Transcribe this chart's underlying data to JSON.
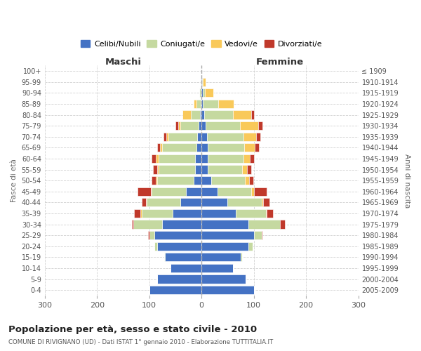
{
  "age_groups": [
    "0-4",
    "5-9",
    "10-14",
    "15-19",
    "20-24",
    "25-29",
    "30-34",
    "35-39",
    "40-44",
    "45-49",
    "50-54",
    "55-59",
    "60-64",
    "65-69",
    "70-74",
    "75-79",
    "80-84",
    "85-89",
    "90-94",
    "95-99",
    "100+"
  ],
  "birth_years": [
    "2005-2009",
    "2000-2004",
    "1995-1999",
    "1990-1994",
    "1985-1989",
    "1980-1984",
    "1975-1979",
    "1970-1974",
    "1965-1969",
    "1960-1964",
    "1955-1959",
    "1950-1954",
    "1945-1949",
    "1940-1944",
    "1935-1939",
    "1930-1934",
    "1925-1929",
    "1920-1924",
    "1915-1919",
    "1910-1914",
    "≤ 1909"
  ],
  "male_celibi": [
    100,
    85,
    60,
    70,
    85,
    90,
    75,
    55,
    40,
    30,
    15,
    12,
    12,
    10,
    8,
    5,
    3,
    2,
    2,
    1,
    0
  ],
  "male_coniugati": [
    0,
    0,
    0,
    2,
    5,
    10,
    55,
    60,
    65,
    65,
    70,
    70,
    70,
    65,
    55,
    35,
    18,
    8,
    2,
    0,
    0
  ],
  "male_vedovi": [
    0,
    0,
    0,
    0,
    0,
    0,
    0,
    2,
    2,
    2,
    2,
    3,
    5,
    5,
    5,
    5,
    15,
    5,
    0,
    0,
    0
  ],
  "male_divorziati": [
    0,
    0,
    0,
    0,
    0,
    2,
    3,
    12,
    8,
    25,
    8,
    8,
    8,
    5,
    5,
    5,
    0,
    0,
    0,
    0,
    0
  ],
  "female_celibi": [
    100,
    85,
    60,
    75,
    90,
    100,
    90,
    65,
    50,
    30,
    18,
    12,
    12,
    12,
    10,
    8,
    5,
    2,
    2,
    1,
    0
  ],
  "female_coniugati": [
    0,
    0,
    0,
    2,
    8,
    15,
    60,
    58,
    65,
    65,
    65,
    65,
    68,
    70,
    70,
    65,
    55,
    30,
    5,
    2,
    0
  ],
  "female_vedovi": [
    0,
    0,
    0,
    0,
    0,
    0,
    0,
    2,
    3,
    5,
    8,
    10,
    12,
    20,
    25,
    35,
    35,
    30,
    15,
    5,
    0
  ],
  "female_divorziati": [
    0,
    0,
    0,
    0,
    0,
    2,
    10,
    12,
    12,
    25,
    8,
    8,
    8,
    8,
    8,
    8,
    5,
    0,
    0,
    0,
    0
  ],
  "colors": {
    "celibi": "#4472c4",
    "coniugati": "#c5d9a0",
    "vedovi": "#f9c95a",
    "divorziati": "#c0392b"
  },
  "title": "Popolazione per età, sesso e stato civile - 2010",
  "subtitle": "COMUNE DI RIVIGNANO (UD) - Dati ISTAT 1° gennaio 2010 - Elaborazione TUTTITALIA.IT",
  "xlabel_left": "Maschi",
  "xlabel_right": "Femmine",
  "ylabel_left": "Fasce di età",
  "ylabel_right": "Anni di nascita",
  "xlim": 300,
  "bg_color": "#ffffff",
  "grid_color": "#cccccc"
}
